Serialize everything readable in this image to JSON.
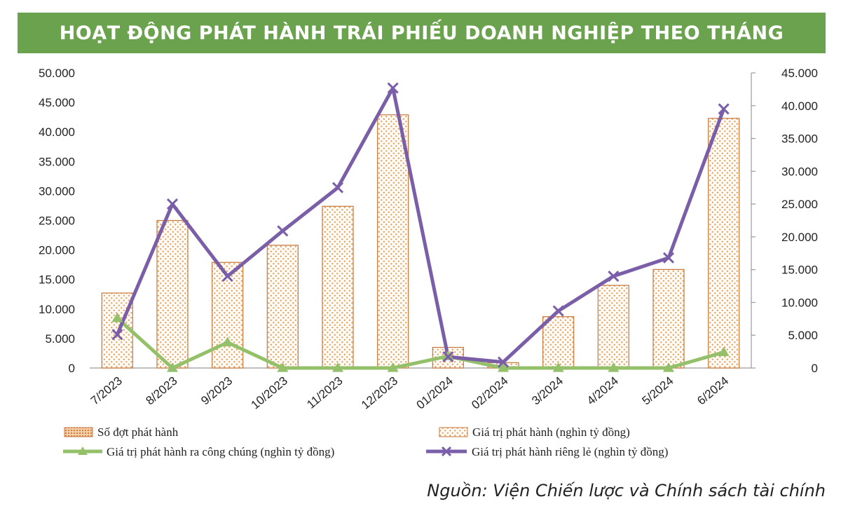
{
  "header": {
    "title": "HOẠT ĐỘNG PHÁT HÀNH TRÁI PHIẾU DOANH NGHIỆP THEO THÁNG"
  },
  "source": "Nguồn: Viện Chiến lược và Chính sách tài chính",
  "colors": {
    "title_bg": "#6ba24d",
    "bar_edge": "#c8773a",
    "bar_dots": "#e8a868",
    "public_line": "#94c06a",
    "private_line": "#7a5fa8"
  },
  "chart_data": {
    "type": "bar",
    "categories": [
      "7/2023",
      "8/2023",
      "9/2023",
      "10/2023",
      "11/2023",
      "12/2023",
      "01/2024",
      "02/2024",
      "3/2024",
      "4/2024",
      "5/2024",
      "6/2024"
    ],
    "y_left": {
      "range": [
        0,
        50000
      ],
      "ticks": [
        "0",
        "5.000",
        "10.000",
        "15.000",
        "20.000",
        "25.000",
        "30.000",
        "35.000",
        "40.000",
        "45.000",
        "50.000"
      ]
    },
    "y_right": {
      "range": [
        0,
        45000
      ],
      "ticks": [
        "0",
        "5.000",
        "10.000",
        "15.000",
        "20.000",
        "25.000",
        "30.000",
        "35.000",
        "40.000",
        "45.000"
      ]
    },
    "series": [
      {
        "name": "Giá trị phát hành (nghìn tỷ đồng)",
        "kind": "bar",
        "axis": "left",
        "values": [
          12700,
          25000,
          17900,
          20800,
          27400,
          42900,
          3500,
          900,
          8700,
          14000,
          16700,
          42300
        ]
      },
      {
        "name": "Giá trị phát hành ra công chúng (nghìn tỷ đồng)",
        "kind": "line",
        "marker": "triangle",
        "axis": "right",
        "values": [
          7600,
          0,
          3900,
          0,
          0,
          0,
          1800,
          0,
          0,
          0,
          0,
          2400
        ]
      },
      {
        "name": "Giá trị phát hành riêng lẻ (nghìn tỷ đồng)",
        "kind": "line",
        "marker": "x",
        "axis": "right",
        "values": [
          5100,
          25000,
          14000,
          20900,
          27500,
          42700,
          1700,
          900,
          8700,
          14000,
          16800,
          39500
        ]
      }
    ],
    "legend": {
      "position": "bottom",
      "entries": [
        "Số đợt phát hành",
        "Giá trị phát hành (nghìn tỷ đồng)",
        "Giá trị phát hành ra công chúng (nghìn tỷ đồng)",
        "Giá trị phát hành riêng lẻ (nghìn tỷ đồng)"
      ]
    },
    "grid": false
  }
}
